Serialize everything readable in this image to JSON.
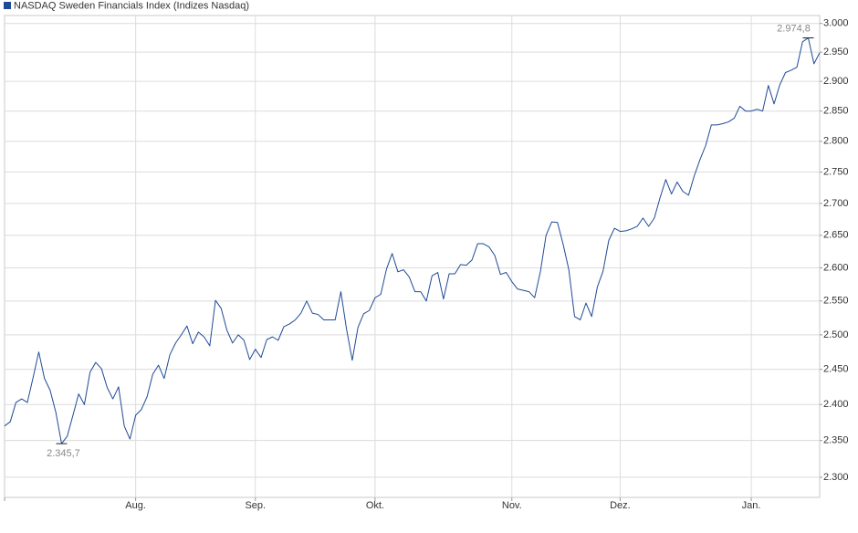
{
  "chart_data": {
    "type": "line",
    "ylog": true,
    "grid": true,
    "ylim": [
      2273,
      3014
    ],
    "yticks": [
      {
        "value": 2300,
        "label": "2.300"
      },
      {
        "value": 2350,
        "label": "2.350"
      },
      {
        "value": 2400,
        "label": "2.400"
      },
      {
        "value": 2450,
        "label": "2.450"
      },
      {
        "value": 2500,
        "label": "2.500"
      },
      {
        "value": 2550,
        "label": "2.550"
      },
      {
        "value": 2600,
        "label": "2.600"
      },
      {
        "value": 2650,
        "label": "2.650"
      },
      {
        "value": 2700,
        "label": "2.700"
      },
      {
        "value": 2750,
        "label": "2.750"
      },
      {
        "value": 2800,
        "label": "2.800"
      },
      {
        "value": 2850,
        "label": "2.850"
      },
      {
        "value": 2900,
        "label": "2.900"
      },
      {
        "value": 2950,
        "label": "2.950"
      },
      {
        "value": 3000,
        "label": "3.000"
      }
    ],
    "categories": [
      null,
      null,
      null,
      null,
      null,
      null,
      null,
      null,
      null,
      null,
      null,
      null,
      null,
      null,
      null,
      null,
      null,
      null,
      null,
      null,
      null,
      null,
      null,
      "Aug.",
      null,
      null,
      null,
      null,
      null,
      null,
      null,
      null,
      null,
      null,
      null,
      null,
      null,
      null,
      null,
      null,
      null,
      null,
      null,
      null,
      "Sep.",
      null,
      null,
      null,
      null,
      null,
      null,
      null,
      null,
      null,
      null,
      null,
      null,
      null,
      null,
      null,
      null,
      null,
      null,
      null,
      null,
      "Okt.",
      null,
      null,
      null,
      null,
      null,
      null,
      null,
      null,
      null,
      null,
      null,
      null,
      null,
      null,
      null,
      null,
      null,
      null,
      null,
      null,
      null,
      null,
      null,
      "Nov.",
      null,
      null,
      null,
      null,
      null,
      null,
      null,
      null,
      null,
      null,
      null,
      null,
      null,
      null,
      null,
      null,
      null,
      null,
      "Dez.",
      null,
      null,
      null,
      null,
      null,
      null,
      null,
      null,
      null,
      null,
      null,
      null,
      null,
      null,
      null,
      null,
      null,
      null,
      null,
      null,
      null,
      null,
      "Jan.",
      null,
      null,
      null,
      null,
      null,
      null,
      null,
      null,
      null,
      null,
      null,
      null
    ],
    "series": [
      {
        "name": "NASDAQ Sweden Financials Index  (Indizes Nasdaq)",
        "color": "#1f4a96",
        "values": [
          2370,
          2376,
          2403,
          2408,
          2403,
          2438,
          2475,
          2437,
          2420,
          2389,
          2345.7,
          2356,
          2385,
          2415,
          2400,
          2446,
          2460,
          2451,
          2424,
          2408,
          2425,
          2370,
          2352,
          2385,
          2393,
          2411,
          2443,
          2456,
          2437,
          2471,
          2488,
          2500,
          2513,
          2487,
          2504,
          2497,
          2484,
          2551,
          2539,
          2507,
          2488,
          2500,
          2492,
          2464,
          2479,
          2467,
          2493,
          2497,
          2492,
          2512,
          2516,
          2522,
          2532,
          2550,
          2532,
          2530,
          2522,
          2522,
          2522,
          2564,
          2508,
          2463,
          2511,
          2531,
          2536,
          2555,
          2560,
          2598,
          2622,
          2594,
          2597,
          2586,
          2564,
          2564,
          2550,
          2588,
          2593,
          2553,
          2591,
          2591,
          2605,
          2604,
          2612,
          2637,
          2637,
          2632,
          2619,
          2590,
          2593,
          2579,
          2568,
          2566,
          2564,
          2555,
          2594,
          2650,
          2671,
          2670,
          2636,
          2597,
          2527,
          2522,
          2547,
          2527,
          2571,
          2595,
          2642,
          2661,
          2656,
          2657,
          2660,
          2664,
          2677,
          2664,
          2677,
          2709,
          2738,
          2715,
          2734,
          2719,
          2713,
          2744,
          2770,
          2793,
          2827,
          2827,
          2829,
          2832,
          2838,
          2858,
          2850,
          2850,
          2853,
          2850,
          2893,
          2862,
          2894,
          2915,
          2919,
          2924,
          2968,
          2974.8,
          2930,
          2949
        ],
        "value_labels": [
          null,
          null,
          null,
          null,
          null,
          null,
          null,
          null,
          null,
          null,
          "2.345,7",
          null,
          null,
          null,
          null,
          null,
          null,
          null,
          null,
          null,
          null,
          null,
          null,
          null,
          null,
          null,
          null,
          null,
          null,
          null,
          null,
          null,
          null,
          null,
          null,
          null,
          null,
          null,
          null,
          null,
          null,
          null,
          null,
          null,
          null,
          null,
          null,
          null,
          null,
          null,
          null,
          null,
          null,
          null,
          null,
          null,
          null,
          null,
          null,
          null,
          null,
          null,
          null,
          null,
          null,
          null,
          null,
          null,
          null,
          null,
          null,
          null,
          null,
          null,
          null,
          null,
          null,
          null,
          null,
          null,
          null,
          null,
          null,
          null,
          null,
          null,
          null,
          null,
          null,
          null,
          null,
          null,
          null,
          null,
          null,
          null,
          null,
          null,
          null,
          null,
          null,
          null,
          null,
          null,
          null,
          null,
          null,
          null,
          null,
          null,
          null,
          null,
          null,
          null,
          null,
          null,
          null,
          null,
          null,
          null,
          null,
          null,
          null,
          null,
          null,
          null,
          null,
          null,
          null,
          null,
          null,
          null,
          null,
          null,
          null,
          null,
          null,
          null,
          null,
          null,
          null,
          "2.974,8",
          null,
          null
        ]
      }
    ]
  }
}
